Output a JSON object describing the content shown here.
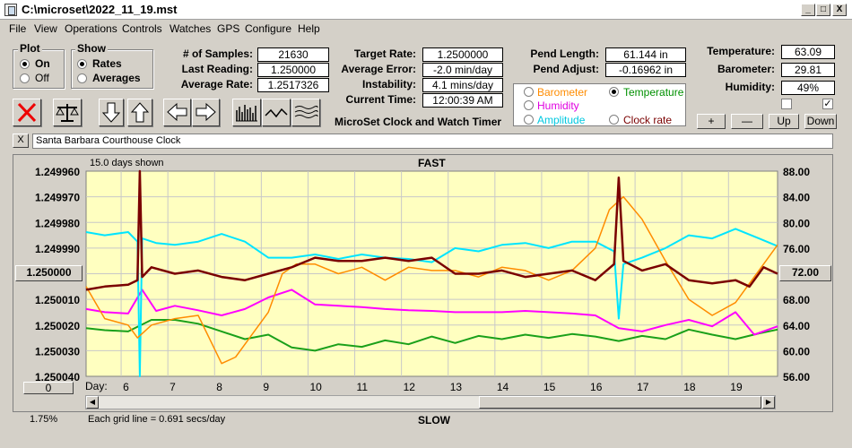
{
  "window": {
    "title": "C:\\microset\\2022_11_19.mst",
    "min": "_",
    "max": "□",
    "close": "X"
  },
  "menu": [
    "File",
    "View",
    "Operations",
    "Controls",
    "Watches",
    "GPS",
    "Configure",
    "Help"
  ],
  "plot": {
    "title": "Plot",
    "on": "On",
    "off": "Off",
    "selected": "On"
  },
  "show": {
    "title": "Show",
    "rates": "Rates",
    "averages": "Averages",
    "selected": "Rates"
  },
  "stats": {
    "samples_label": "# of Samples:",
    "samples": "21630",
    "last_label": "Last Reading:",
    "last": "1.250000",
    "avg_rate_label": "Average Rate:",
    "avg_rate": "1.2517326",
    "target_label": "Target Rate:",
    "target": "1.2500000",
    "avg_err_label": "Average Error:",
    "avg_err": "-2.0 min/day",
    "instab_label": "Instability:",
    "instab": "4.1 mins/day",
    "time_label": "Current Time:",
    "time": "12:00:39 AM",
    "pend_len_label": "Pend Length:",
    "pend_len": "61.144 in",
    "pend_adj_label": "Pend Adjust:",
    "pend_adj": "-0.16962 in",
    "temp_label": "Temperature:",
    "temp": "63.09",
    "baro_label": "Barometer:",
    "baro": "29.81",
    "hum_label": "Humidity:",
    "hum": "49%"
  },
  "app_name": "MicroSet Clock and Watch Timer",
  "overlay": {
    "barometer": "Barometer",
    "temperature": "Temperature",
    "humidity": "Humidity",
    "amplitude": "Amplitude",
    "clock_rate": "Clock rate",
    "selected": "Temperature"
  },
  "scale_buttons": {
    "plus": "+",
    "minus": "—",
    "up": "Up",
    "down": "Down"
  },
  "clock_name": "Santa Barbara Courthouse Clock",
  "close_x": "X",
  "colors": {
    "rate": "#7a0000",
    "barometer": "#ff8c00",
    "temperature": "#1aa01a",
    "humidity": "#ff00ff",
    "amplitude": "#00e5ff",
    "plot_bg": "#ffffc0"
  },
  "chart_data": {
    "type": "line",
    "days_shown": "15.0 days shown",
    "top_label": "FAST",
    "bottom_label": "SLOW",
    "grid_note": "Each grid line = 0.691 secs/day",
    "percent": "1.75%",
    "left_center_button": "1.250000",
    "left_bottom_button": "0",
    "right_center_button": "72.00",
    "xlabel": "Day:",
    "x_ticks": [
      "6",
      "7",
      "8",
      "9",
      "10",
      "11",
      "12",
      "13",
      "14",
      "15",
      "16",
      "17",
      "18",
      "19"
    ],
    "y_left_ticks": [
      "1.249960",
      "1.249970",
      "1.249980",
      "1.249990",
      "1.250010",
      "1.250020",
      "1.250030",
      "1.250040"
    ],
    "y_right_ticks": [
      "88.00",
      "84.00",
      "80.00",
      "76.00",
      "68.00",
      "64.00",
      "60.00",
      "56.00"
    ],
    "xlim": [
      5.1,
      19.9
    ],
    "y_right_lim": [
      56,
      88
    ],
    "series": [
      {
        "key": "temperature",
        "x": [
          5.1,
          5.5,
          6.0,
          6.5,
          7.0,
          7.5,
          8.0,
          8.5,
          9.0,
          9.5,
          10.0,
          10.5,
          11.0,
          11.5,
          12.0,
          12.5,
          13.0,
          13.5,
          14.0,
          14.5,
          15.0,
          15.5,
          16.0,
          16.5,
          17.0,
          17.5,
          18.0,
          18.5,
          19.0,
          19.5,
          19.9
        ],
        "y": [
          63.5,
          63.2,
          63.0,
          64.8,
          64.8,
          64.2,
          63.0,
          61.8,
          62.5,
          60.5,
          60.0,
          61.0,
          60.6,
          61.6,
          61.0,
          62.2,
          61.2,
          62.3,
          61.8,
          62.5,
          62.0,
          62.6,
          62.2,
          61.5,
          62.3,
          61.8,
          63.3,
          62.5,
          61.8,
          62.7,
          63.3
        ]
      },
      {
        "key": "humidity",
        "x": [
          5.1,
          5.5,
          6.0,
          6.3,
          6.6,
          7.0,
          7.5,
          8.0,
          8.5,
          9.0,
          9.5,
          10.0,
          10.5,
          11.0,
          11.5,
          12.0,
          12.5,
          13.0,
          13.5,
          14.0,
          14.5,
          15.0,
          15.5,
          16.0,
          16.5,
          17.0,
          17.5,
          18.0,
          18.5,
          19.0,
          19.4,
          19.9
        ],
        "y": [
          66.5,
          66.0,
          65.8,
          69.5,
          66.2,
          67.0,
          66.3,
          65.5,
          66.5,
          68.3,
          69.5,
          67.2,
          67.0,
          66.8,
          66.5,
          66.3,
          66.2,
          66.0,
          66.0,
          66.0,
          66.2,
          66.0,
          65.8,
          65.5,
          63.5,
          63.0,
          64.0,
          64.8,
          63.8,
          66.0,
          62.5,
          63.8
        ]
      },
      {
        "key": "amplitude",
        "x": [
          5.1,
          5.5,
          6.0,
          6.2,
          6.25,
          6.3,
          6.6,
          7.0,
          7.5,
          8.0,
          8.5,
          9.0,
          9.5,
          10.0,
          10.5,
          11.0,
          11.5,
          12.0,
          12.5,
          13.0,
          13.5,
          14.0,
          14.5,
          15.0,
          15.5,
          16.0,
          16.4,
          16.5,
          16.6,
          17.0,
          17.5,
          18.0,
          18.5,
          19.0,
          19.5,
          19.9
        ],
        "y": [
          78.5,
          78.0,
          78.5,
          77.0,
          56.0,
          77.5,
          76.8,
          76.5,
          77.0,
          78.2,
          77.0,
          74.5,
          74.5,
          75.0,
          74.3,
          75.0,
          74.5,
          74.3,
          73.8,
          76.0,
          75.5,
          76.5,
          76.8,
          76.0,
          77.0,
          77.0,
          75.5,
          65.0,
          73.5,
          74.5,
          76.0,
          78.0,
          77.5,
          79.0,
          77.5,
          76.3
        ]
      },
      {
        "key": "barometer",
        "x": [
          5.1,
          5.5,
          6.0,
          6.2,
          6.5,
          7.0,
          7.5,
          8.0,
          8.3,
          8.6,
          9.0,
          9.3,
          9.6,
          10.0,
          10.5,
          11.0,
          11.5,
          12.0,
          12.5,
          13.0,
          13.5,
          14.0,
          14.5,
          15.0,
          15.5,
          16.0,
          16.3,
          16.6,
          17.0,
          17.5,
          18.0,
          18.5,
          19.0,
          19.5,
          19.9
        ],
        "y": [
          70.0,
          65.0,
          64.0,
          62.0,
          64.0,
          65.0,
          65.5,
          58.0,
          59.0,
          62.0,
          66.0,
          72.0,
          73.5,
          73.5,
          72.0,
          73.0,
          71.0,
          73.0,
          72.5,
          72.5,
          71.5,
          73.0,
          72.5,
          71.0,
          72.5,
          76.0,
          82.0,
          84.0,
          80.5,
          74.0,
          68.0,
          65.5,
          67.5,
          72.5,
          76.5
        ]
      },
      {
        "key": "rate",
        "x": [
          5.1,
          5.5,
          6.0,
          6.2,
          6.25,
          6.3,
          6.5,
          7.0,
          7.5,
          8.0,
          8.5,
          9.0,
          9.5,
          10.0,
          10.5,
          11.0,
          11.5,
          12.0,
          12.5,
          13.0,
          13.5,
          14.0,
          14.5,
          15.0,
          15.5,
          16.0,
          16.4,
          16.5,
          16.6,
          17.0,
          17.5,
          18.0,
          18.5,
          19.0,
          19.3,
          19.6,
          19.9
        ],
        "y": [
          69.5,
          70.0,
          70.3,
          71.0,
          88.0,
          71.5,
          73.0,
          72.0,
          72.5,
          71.5,
          71.0,
          72.0,
          73.0,
          74.5,
          74.0,
          74.0,
          74.5,
          74.0,
          74.5,
          72.0,
          72.0,
          72.5,
          71.5,
          72.0,
          72.5,
          71.0,
          73.5,
          87.0,
          74.0,
          72.5,
          73.5,
          71.0,
          70.5,
          71.0,
          70.0,
          73.0,
          72.0
        ]
      }
    ]
  }
}
